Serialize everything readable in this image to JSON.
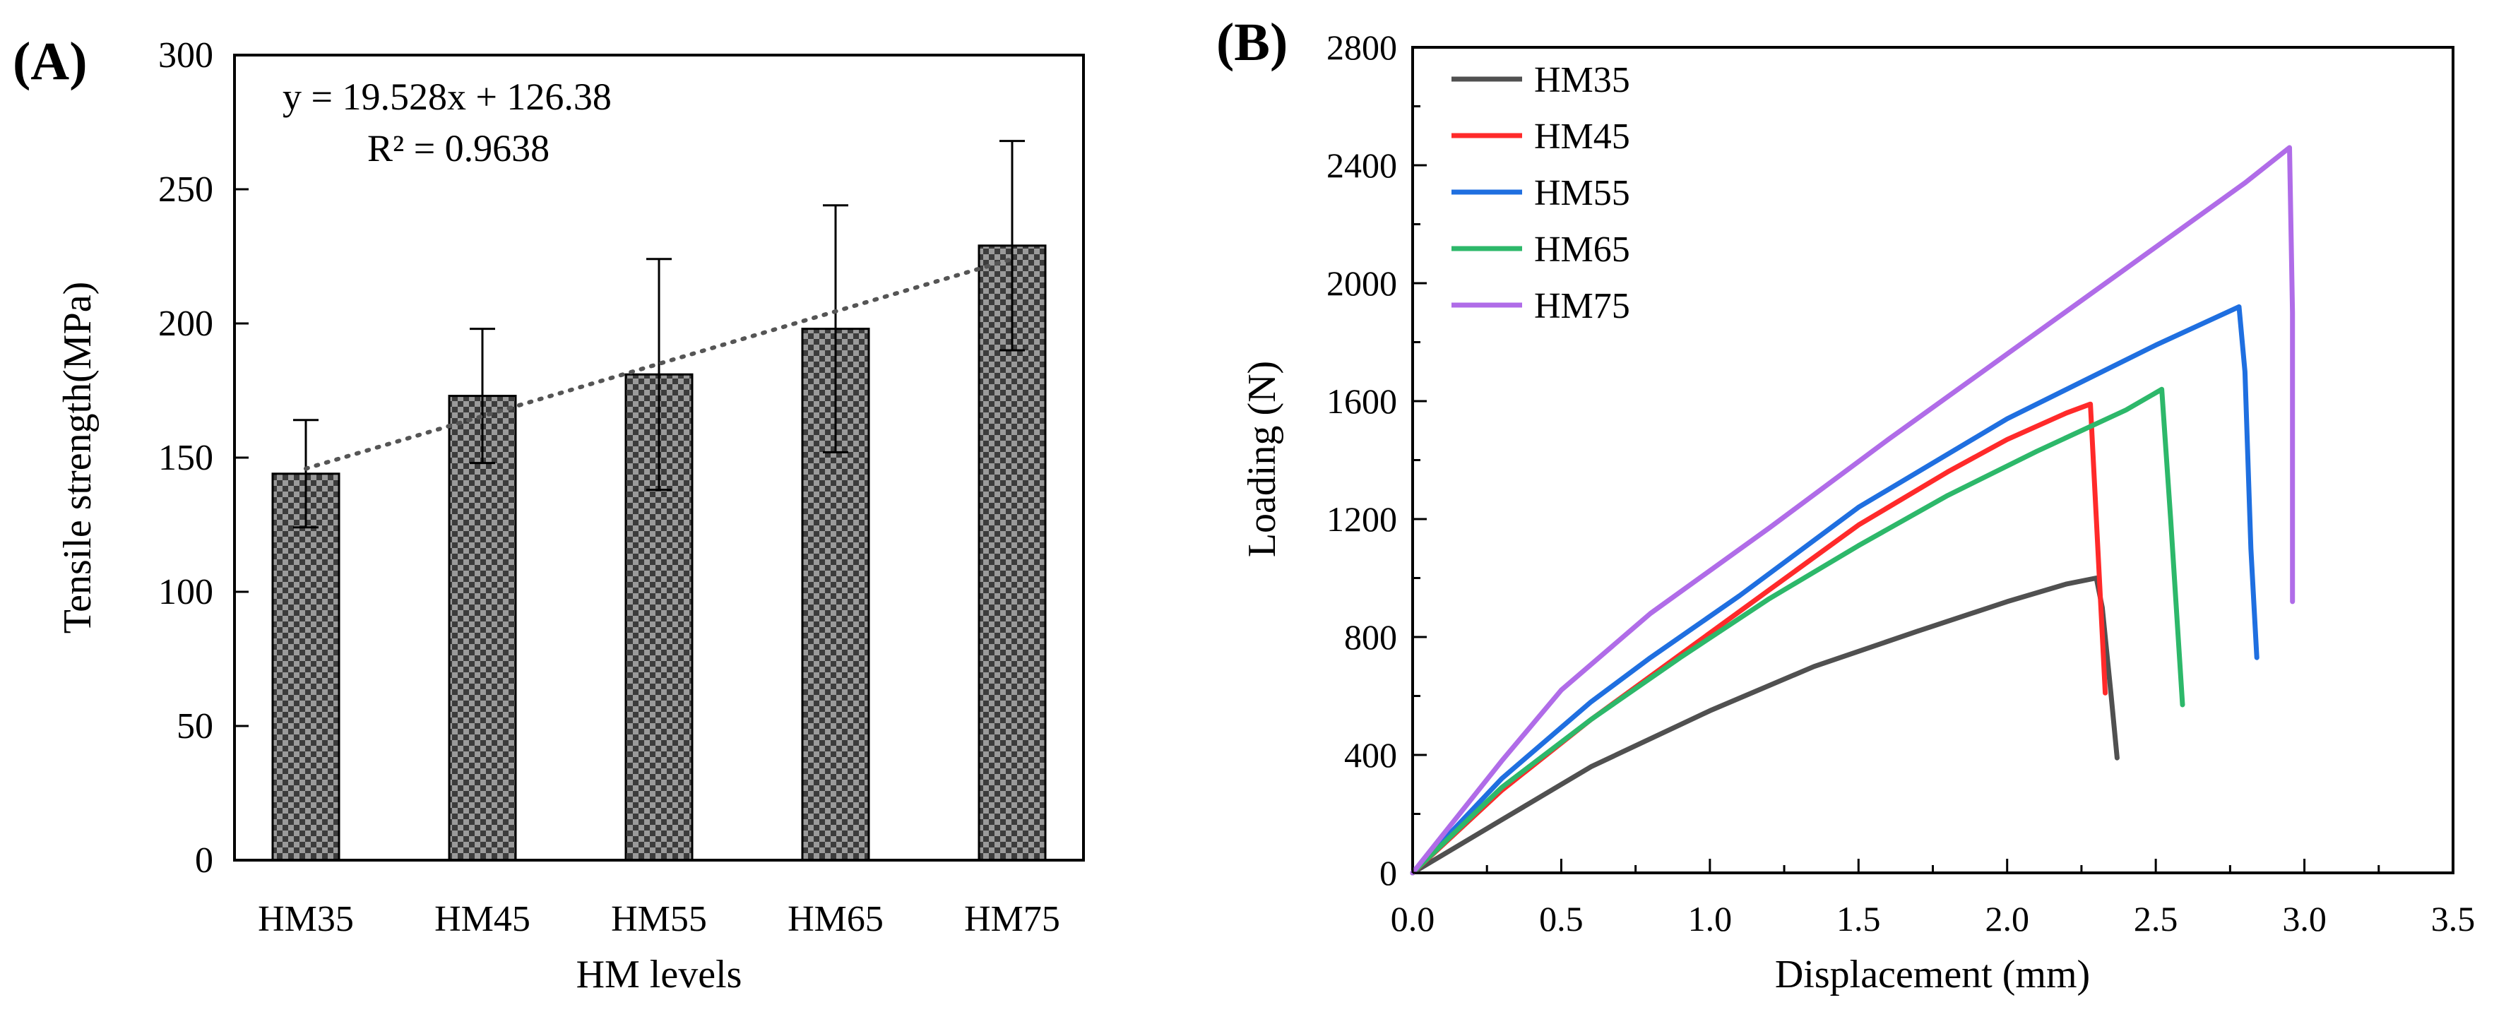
{
  "chart_data": [
    {
      "type": "bar",
      "panel_label": "(A)",
      "title": "",
      "xlabel": "HM levels",
      "ylabel": "Tensile strength(MPa)",
      "categories": [
        "HM35",
        "HM45",
        "HM55",
        "HM65",
        "HM75"
      ],
      "values": [
        144,
        173,
        181,
        198,
        229
      ],
      "errors": [
        20,
        25,
        43,
        46,
        39
      ],
      "ylim": [
        0,
        300
      ],
      "yticks": [
        0,
        50,
        100,
        150,
        200,
        250,
        300
      ],
      "ytick_labels": [
        "0",
        "50",
        "100",
        "150",
        "200",
        "250",
        "300"
      ],
      "trendline": {
        "slope": 19.528,
        "intercept": 126.38,
        "style": "dotted"
      },
      "annotations": [
        "y = 19.528x + 126.38",
        "R² = 0.9638"
      ],
      "grid": false
    },
    {
      "type": "line",
      "panel_label": "(B)",
      "title": "",
      "xlabel": "Displacement (mm)",
      "ylabel": "Loading (N)",
      "xlim": [
        0,
        3.5
      ],
      "ylim": [
        0,
        2800
      ],
      "xticks": [
        0,
        0.5,
        1,
        1.5,
        2,
        2.5,
        3,
        3.5
      ],
      "xtick_labels": [
        "0.0",
        "0.5",
        "1.0",
        "1.5",
        "2.0",
        "2.5",
        "3.0",
        "3.5"
      ],
      "yticks": [
        0,
        400,
        800,
        1200,
        1600,
        2000,
        2400,
        2800
      ],
      "ytick_labels": [
        "0",
        "400",
        "800",
        "1200",
        "1600",
        "2000",
        "2400",
        "2800"
      ],
      "legend_position": "top-left",
      "grid": false,
      "series": [
        {
          "name": "HM35",
          "color": "#505050",
          "x": [
            0,
            0.3,
            0.6,
            1.0,
            1.35,
            1.7,
            2.0,
            2.2,
            2.3,
            2.32,
            2.35,
            2.37
          ],
          "y": [
            0,
            180,
            360,
            550,
            700,
            820,
            920,
            980,
            1000,
            900,
            600,
            390
          ]
        },
        {
          "name": "HM45",
          "color": "#ff2a2a",
          "x": [
            0,
            0.3,
            0.6,
            0.9,
            1.2,
            1.5,
            1.8,
            2.0,
            2.2,
            2.28,
            2.3,
            2.33
          ],
          "y": [
            0,
            280,
            520,
            740,
            960,
            1180,
            1360,
            1470,
            1560,
            1590,
            1200,
            610
          ]
        },
        {
          "name": "HM55",
          "color": "#1f6fe0",
          "x": [
            0,
            0.3,
            0.6,
            0.8,
            1.1,
            1.5,
            2.0,
            2.5,
            2.78,
            2.8,
            2.82,
            2.84
          ],
          "y": [
            0,
            320,
            580,
            730,
            940,
            1240,
            1540,
            1790,
            1920,
            1700,
            1100,
            730
          ]
        },
        {
          "name": "HM65",
          "color": "#2db86a",
          "x": [
            0,
            0.3,
            0.6,
            0.9,
            1.2,
            1.5,
            1.8,
            2.1,
            2.4,
            2.52,
            2.55,
            2.59
          ],
          "y": [
            0,
            290,
            520,
            730,
            930,
            1110,
            1280,
            1430,
            1570,
            1640,
            1200,
            570
          ]
        },
        {
          "name": "HM75",
          "color": "#b06ce8",
          "x": [
            0,
            0.3,
            0.5,
            0.8,
            1.2,
            1.6,
            2.0,
            2.4,
            2.8,
            2.95,
            2.96,
            2.96
          ],
          "y": [
            0,
            380,
            620,
            880,
            1170,
            1470,
            1760,
            2050,
            2340,
            2460,
            1900,
            920
          ]
        }
      ]
    }
  ]
}
